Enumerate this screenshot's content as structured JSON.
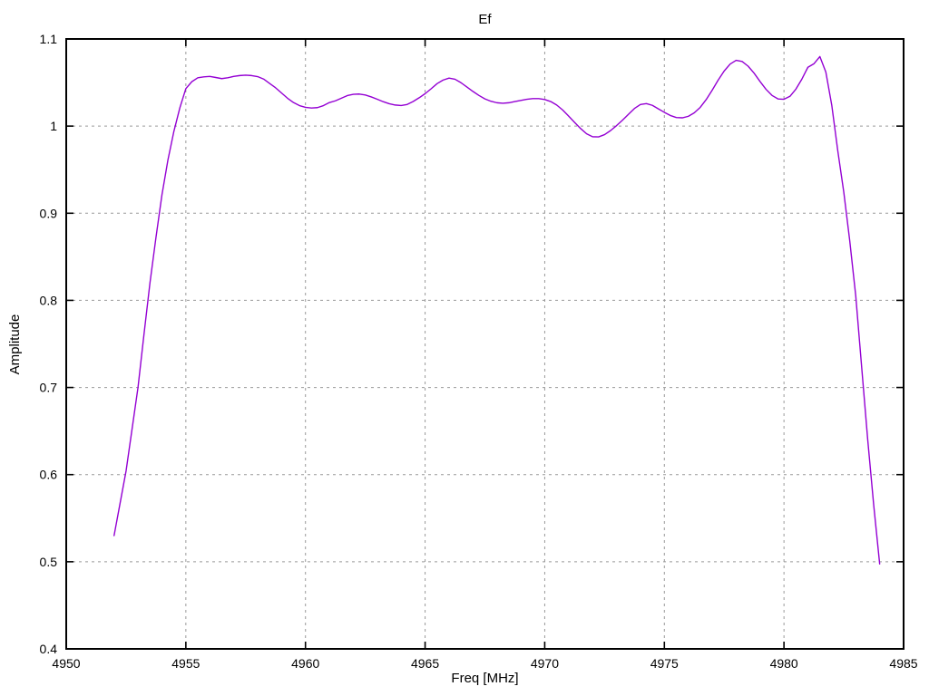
{
  "chart_data": {
    "type": "line",
    "title": "Ef",
    "xlabel": "Freq [MHz]",
    "ylabel": "Amplitude",
    "xlim": [
      4950,
      4985
    ],
    "ylim": [
      0.4,
      1.1
    ],
    "x_ticks": [
      4950,
      4955,
      4960,
      4965,
      4970,
      4975,
      4980,
      4985
    ],
    "y_ticks": [
      0.4,
      0.5,
      0.6,
      0.7,
      0.8,
      0.9,
      1,
      1.1
    ],
    "y_tick_labels": [
      "0.4",
      "0.5",
      "0.6",
      "0.7",
      "0.8",
      "0.9",
      "1",
      "1.1"
    ],
    "grid": true,
    "legend": "none",
    "line_color": "#9400d3",
    "grid_color": "#999999",
    "border_color": "#000000",
    "background_color": "#ffffff",
    "series": [
      {
        "name": "Ef",
        "points": [
          [
            4952.0,
            0.53
          ],
          [
            4952.25,
            0.567
          ],
          [
            4952.5,
            0.604
          ],
          [
            4952.75,
            0.652
          ],
          [
            4953.0,
            0.7
          ],
          [
            4953.25,
            0.761
          ],
          [
            4953.5,
            0.82
          ],
          [
            4953.75,
            0.872
          ],
          [
            4954.0,
            0.921
          ],
          [
            4954.25,
            0.961
          ],
          [
            4954.5,
            0.994
          ],
          [
            4954.75,
            1.021
          ],
          [
            4955.0,
            1.043
          ],
          [
            4955.25,
            1.051
          ],
          [
            4955.5,
            1.0555
          ],
          [
            4955.75,
            1.0565
          ],
          [
            4956.0,
            1.057
          ],
          [
            4956.25,
            1.0558
          ],
          [
            4956.5,
            1.0545
          ],
          [
            4956.75,
            1.0555
          ],
          [
            4957.0,
            1.057
          ],
          [
            4957.25,
            1.058
          ],
          [
            4957.5,
            1.0585
          ],
          [
            4957.75,
            1.058
          ],
          [
            4958.0,
            1.0568
          ],
          [
            4958.25,
            1.054
          ],
          [
            4958.5,
            1.049
          ],
          [
            4958.75,
            1.044
          ],
          [
            4959.0,
            1.038
          ],
          [
            4959.25,
            1.032
          ],
          [
            4959.5,
            1.027
          ],
          [
            4959.75,
            1.0235
          ],
          [
            4960.0,
            1.0215
          ],
          [
            4960.25,
            1.0208
          ],
          [
            4960.5,
            1.0212
          ],
          [
            4960.75,
            1.0235
          ],
          [
            4961.0,
            1.027
          ],
          [
            4961.25,
            1.029
          ],
          [
            4961.5,
            1.032
          ],
          [
            4961.75,
            1.035
          ],
          [
            4962.0,
            1.0365
          ],
          [
            4962.25,
            1.0368
          ],
          [
            4962.5,
            1.0357
          ],
          [
            4962.75,
            1.0335
          ],
          [
            4963.0,
            1.0308
          ],
          [
            4963.25,
            1.028
          ],
          [
            4963.5,
            1.0257
          ],
          [
            4963.75,
            1.0242
          ],
          [
            4964.0,
            1.0236
          ],
          [
            4964.25,
            1.0248
          ],
          [
            4964.5,
            1.0282
          ],
          [
            4964.75,
            1.0325
          ],
          [
            4965.0,
            1.0372
          ],
          [
            4965.25,
            1.0428
          ],
          [
            4965.5,
            1.0487
          ],
          [
            4965.75,
            1.0528
          ],
          [
            4966.0,
            1.0551
          ],
          [
            4966.25,
            1.0538
          ],
          [
            4966.5,
            1.0498
          ],
          [
            4966.75,
            1.0448
          ],
          [
            4967.0,
            1.0398
          ],
          [
            4967.25,
            1.0352
          ],
          [
            4967.5,
            1.0312
          ],
          [
            4967.75,
            1.0285
          ],
          [
            4968.0,
            1.0268
          ],
          [
            4968.25,
            1.0262
          ],
          [
            4968.5,
            1.0268
          ],
          [
            4968.75,
            1.0282
          ],
          [
            4969.0,
            1.0295
          ],
          [
            4969.25,
            1.0308
          ],
          [
            4969.5,
            1.0315
          ],
          [
            4969.75,
            1.0315
          ],
          [
            4970.0,
            1.0305
          ],
          [
            4970.25,
            1.0282
          ],
          [
            4970.5,
            1.0242
          ],
          [
            4970.75,
            1.0185
          ],
          [
            4971.0,
            1.0115
          ],
          [
            4971.25,
            1.0042
          ],
          [
            4971.5,
            0.9972
          ],
          [
            4971.75,
            0.9912
          ],
          [
            4972.0,
            0.9878
          ],
          [
            4972.25,
            0.9876
          ],
          [
            4972.5,
            0.9902
          ],
          [
            4972.75,
            0.9948
          ],
          [
            4973.0,
            1.0005
          ],
          [
            4973.25,
            1.0068
          ],
          [
            4973.5,
            1.0135
          ],
          [
            4973.75,
            1.0202
          ],
          [
            4974.0,
            1.0248
          ],
          [
            4974.25,
            1.0258
          ],
          [
            4974.5,
            1.0238
          ],
          [
            4974.75,
            1.0198
          ],
          [
            4975.0,
            1.0158
          ],
          [
            4975.25,
            1.0122
          ],
          [
            4975.5,
            1.0098
          ],
          [
            4975.75,
            1.0095
          ],
          [
            4976.0,
            1.0112
          ],
          [
            4976.25,
            1.0152
          ],
          [
            4976.5,
            1.0215
          ],
          [
            4976.75,
            1.0305
          ],
          [
            4977.0,
            1.0412
          ],
          [
            4977.25,
            1.0528
          ],
          [
            4977.5,
            1.0632
          ],
          [
            4977.75,
            1.0712
          ],
          [
            4978.0,
            1.0755
          ],
          [
            4978.25,
            1.0742
          ],
          [
            4978.5,
            1.0688
          ],
          [
            4978.75,
            1.0608
          ],
          [
            4979.0,
            1.0512
          ],
          [
            4979.25,
            1.0422
          ],
          [
            4979.5,
            1.0352
          ],
          [
            4979.75,
            1.0312
          ],
          [
            4980.0,
            1.0308
          ],
          [
            4980.25,
            1.0342
          ],
          [
            4980.5,
            1.0425
          ],
          [
            4980.75,
            1.054
          ],
          [
            4981.0,
            1.0675
          ],
          [
            4981.25,
            1.0715
          ],
          [
            4981.5,
            1.0798
          ],
          [
            4981.75,
            1.062
          ],
          [
            4982.0,
            1.0235
          ],
          [
            4982.25,
            0.9715
          ],
          [
            4982.5,
            0.9242
          ],
          [
            4982.75,
            0.8682
          ],
          [
            4983.0,
            0.8052
          ],
          [
            4983.25,
            0.7225
          ],
          [
            4983.5,
            0.6402
          ],
          [
            4983.75,
            0.5652
          ],
          [
            4984.0,
            0.4975
          ]
        ]
      }
    ]
  }
}
